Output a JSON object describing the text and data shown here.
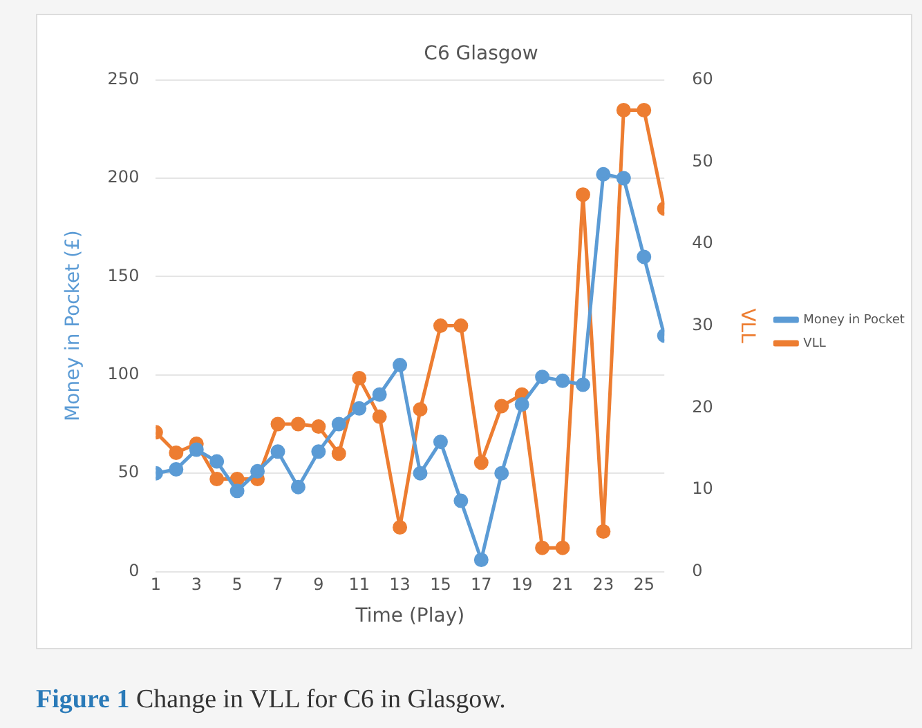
{
  "chart_data": {
    "type": "line",
    "title": "C6 Glasgow",
    "xlabel": "Time (Play)",
    "ylabel": "Money in Pocket (£)",
    "y2label": "VLL",
    "x": [
      1,
      2,
      3,
      4,
      5,
      6,
      7,
      8,
      9,
      10,
      11,
      12,
      13,
      14,
      15,
      16,
      17,
      18,
      19,
      20,
      21,
      22,
      23,
      24,
      25,
      26
    ],
    "xlim": [
      1,
      26
    ],
    "xticks": [
      1,
      3,
      5,
      7,
      9,
      11,
      13,
      15,
      17,
      19,
      21,
      23,
      25
    ],
    "series": [
      {
        "name": "Money in Pocket",
        "color": "#5b9bd5",
        "values": [
          50,
          52,
          62,
          56,
          41,
          51,
          61,
          43,
          61,
          75,
          83,
          90,
          105,
          50,
          66,
          36,
          6,
          50,
          85,
          99,
          97,
          95,
          202,
          200,
          160,
          120
        ]
      },
      {
        "name": "VLL",
        "color": "#ed7d31",
        "axis": "y2",
        "values": [
          17,
          14.5,
          15.6,
          11.3,
          11.3,
          11.3,
          18,
          18,
          17.7,
          14.4,
          23.6,
          18.9,
          5.4,
          19.8,
          30,
          30,
          13.3,
          20.2,
          21.6,
          2.9,
          2.9,
          46,
          4.9,
          56.3,
          56.3,
          44.3
        ]
      }
    ],
    "ylim": [
      0,
      250
    ],
    "yticks": [
      0,
      50,
      100,
      150,
      200,
      250
    ],
    "y2lim": [
      0,
      60
    ],
    "y2ticks": [
      0,
      10,
      20,
      30,
      40,
      50,
      60
    ],
    "grid": "y",
    "legend": "right",
    "marker": "circle",
    "line_style": "solid",
    "annotations": [
      "Figure 1 Change in VLL for C6 in Glasgow."
    ]
  }
}
